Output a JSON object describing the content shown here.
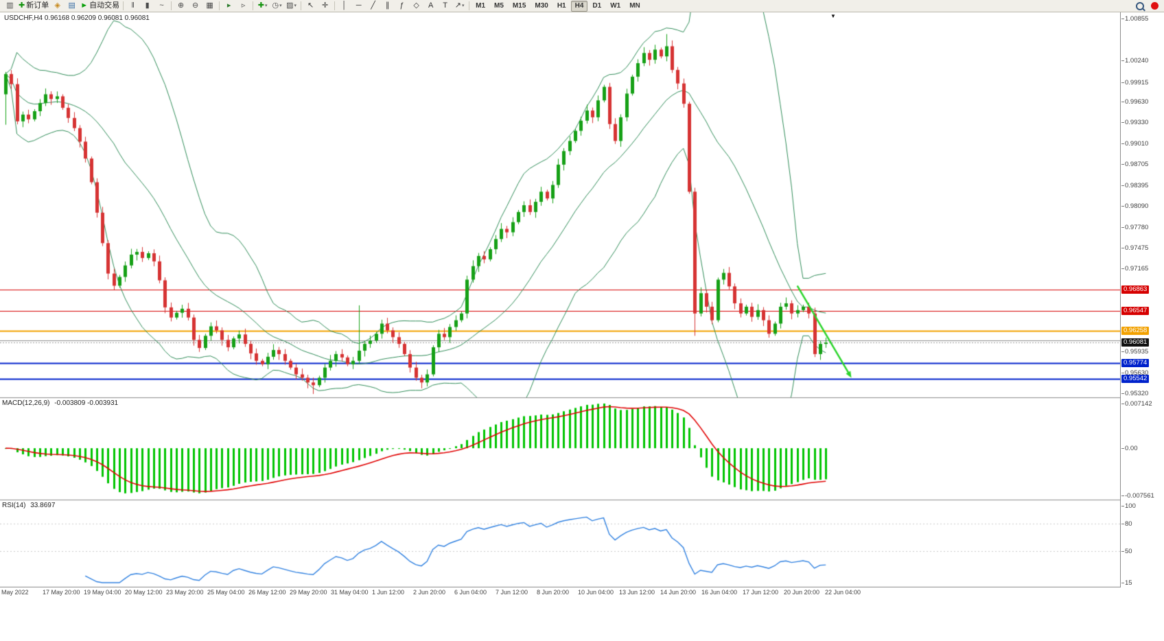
{
  "toolbar": {
    "items": [
      {
        "name": "new-chart-button",
        "glyph": "▥",
        "color": "#4a4a4a"
      },
      {
        "name": "new-order-button",
        "glyph": "✚",
        "color": "#14930e",
        "label": "新订单"
      },
      {
        "name": "metaeditor-button",
        "glyph": "◈",
        "color": "#c78a1e"
      },
      {
        "name": "market-watch-button",
        "glyph": "▤",
        "color": "#3a6ea5"
      },
      {
        "name": "autotrading-button",
        "glyph": "►",
        "color": "#0ca00c",
        "label": "自动交易"
      },
      {
        "sep": true
      },
      {
        "name": "bar-chart-button",
        "glyph": "‖",
        "color": "#4a4a4a"
      },
      {
        "name": "candlestick-chart-button",
        "glyph": "▮",
        "color": "#4a4a4a"
      },
      {
        "name": "line-chart-button",
        "glyph": "~",
        "color": "#4a4a4a"
      },
      {
        "sep": true
      },
      {
        "name": "zoom-in-button",
        "glyph": "⊕",
        "color": "#4a4a4a"
      },
      {
        "name": "zoom-out-button",
        "glyph": "⊖",
        "color": "#4a4a4a"
      },
      {
        "name": "tile-windows-button",
        "glyph": "▦",
        "color": "#4a4a4a"
      },
      {
        "sep": true
      },
      {
        "name": "auto-scroll-button",
        "glyph": "▸",
        "color": "#2f7d2f"
      },
      {
        "name": "chart-shift-button",
        "glyph": "▹",
        "color": "#4a4a4a"
      },
      {
        "sep": true
      },
      {
        "name": "indicators-button",
        "glyph": "✚",
        "color": "#14930e",
        "dd": true
      },
      {
        "name": "periods-button",
        "glyph": "◷",
        "color": "#4a4a4a",
        "dd": true
      },
      {
        "name": "templates-button",
        "glyph": "▨",
        "color": "#4a4a4a",
        "dd": true
      },
      {
        "sep": true
      },
      {
        "name": "cursor-button",
        "glyph": "↖",
        "color": "#333333"
      },
      {
        "name": "crosshair-button",
        "glyph": "✛",
        "color": "#333333"
      },
      {
        "sep": true
      },
      {
        "name": "vertical-line-button",
        "glyph": "│",
        "color": "#333333"
      },
      {
        "name": "horizontal-line-button",
        "glyph": "─",
        "color": "#333333"
      },
      {
        "name": "trendline-button",
        "glyph": "╱",
        "color": "#333333"
      },
      {
        "name": "channel-button",
        "glyph": "∥",
        "color": "#333333"
      },
      {
        "name": "fibonacci-button",
        "glyph": "ƒ",
        "color": "#333333"
      },
      {
        "name": "shapes-button",
        "glyph": "◇",
        "color": "#333333"
      },
      {
        "name": "text-button",
        "glyph": "A",
        "color": "#333333"
      },
      {
        "name": "text-label-button",
        "glyph": "T",
        "color": "#333333"
      },
      {
        "name": "arrows-button",
        "glyph": "↗",
        "color": "#333333",
        "dd": true
      }
    ],
    "timeframes": [
      "M1",
      "M5",
      "M15",
      "M30",
      "H1",
      "H4",
      "D1",
      "W1",
      "MN"
    ],
    "active_timeframe": "H4"
  },
  "chart": {
    "symbol_ohlc": "USDCHF,H4  0.96168 0.96209 0.96081 0.96081",
    "price_axis_labels": [
      {
        "t": "1.00855",
        "p": 1.00855
      },
      {
        "t": "1.00240",
        "p": 1.0024
      },
      {
        "t": "0.99915",
        "p": 0.99915
      },
      {
        "t": "0.99630",
        "p": 0.9963
      },
      {
        "t": "0.99330",
        "p": 0.9933
      },
      {
        "t": "0.99010",
        "p": 0.9901
      },
      {
        "t": "0.98705",
        "p": 0.98705
      },
      {
        "t": "0.98395",
        "p": 0.98395
      },
      {
        "t": "0.98090",
        "p": 0.9809
      },
      {
        "t": "0.97780",
        "p": 0.9778
      },
      {
        "t": "0.97475",
        "p": 0.97475
      },
      {
        "t": "0.97165",
        "p": 0.97165
      },
      {
        "t": "0.95935",
        "p": 0.95935
      },
      {
        "t": "0.95630",
        "p": 0.9563
      },
      {
        "t": "0.95320",
        "p": 0.9532
      }
    ],
    "price_badges": [
      {
        "t": "0.96863",
        "p": 0.96863,
        "bg": "#d60000"
      },
      {
        "t": "0.96547",
        "p": 0.96547,
        "bg": "#d60000"
      },
      {
        "t": "0.96258",
        "p": 0.96258,
        "bg": "#f2a100"
      },
      {
        "t": "0.96081",
        "p": 0.96081,
        "bg": "#111111"
      },
      {
        "t": "0.95774",
        "p": 0.95774,
        "bg": "#0022cc"
      },
      {
        "t": "0.95542",
        "p": 0.95542,
        "bg": "#0022cc"
      }
    ],
    "time_axis": [
      "May 2022",
      "17 May 20:00",
      "19 May 04:00",
      "20 May 12:00",
      "23 May 20:00",
      "25 May 04:00",
      "26 May 12:00",
      "29 May 20:00",
      "31 May 04:00",
      "1 Jun 12:00",
      "2 Jun 20:00",
      "6 Jun 04:00",
      "7 Jun 12:00",
      "8 Jun 20:00",
      "10 Jun 04:00",
      "13 Jun 12:00",
      "14 Jun 20:00",
      "16 Jun 04:00",
      "17 Jun 12:00",
      "20 Jun 20:00",
      "22 Jun 04:00"
    ]
  },
  "macd": {
    "label": "MACD(12,26,9)",
    "values": "-0.003809 -0.003931",
    "axis": [
      {
        "t": "0.007142",
        "v": 0.007142
      },
      {
        "t": "0.00",
        "v": 0
      },
      {
        "t": "-0.007561",
        "v": -0.007561
      }
    ],
    "range": [
      -0.007561,
      0.007142
    ]
  },
  "rsi": {
    "label": "RSI(14)",
    "value": "33.8697",
    "axis": [
      {
        "t": "100",
        "v": 100
      },
      {
        "t": "80",
        "v": 80
      },
      {
        "t": "50",
        "v": 50
      },
      {
        "t": "15",
        "v": 15
      }
    ],
    "range": [
      15,
      100
    ],
    "levels": [
      80,
      50
    ]
  },
  "colors": {
    "up": "#16a016",
    "down": "#d63333",
    "bollinger": "#2e8b57",
    "macd_hist": "#00c400",
    "macd_signal": "#e00000",
    "rsi_line": "#2f80e0",
    "arrow": "#2bd42b",
    "level_dots": "#c8c8c8"
  },
  "chart_data": {
    "type": "candlestick",
    "symbol": "USDCHF",
    "timeframe": "H4",
    "ohlc_current": {
      "open": 0.96168,
      "high": 0.96209,
      "low": 0.96081,
      "close": 0.96081
    },
    "y_range": [
      0.9528,
      1.0088
    ],
    "closes": [
      1.0005,
      0.999,
      0.9935,
      0.9945,
      0.9938,
      0.995,
      0.9962,
      0.9975,
      0.9968,
      0.9972,
      0.9955,
      0.994,
      0.9925,
      0.9905,
      0.988,
      0.9845,
      0.98,
      0.9755,
      0.971,
      0.9692,
      0.9705,
      0.9722,
      0.9738,
      0.9742,
      0.9733,
      0.974,
      0.9728,
      0.97,
      0.966,
      0.9645,
      0.9652,
      0.9658,
      0.9645,
      0.9612,
      0.96,
      0.9618,
      0.9632,
      0.9626,
      0.9612,
      0.9601,
      0.9614,
      0.962,
      0.9606,
      0.9592,
      0.9581,
      0.9576,
      0.9587,
      0.9597,
      0.9591,
      0.9581,
      0.9571,
      0.9561,
      0.9556,
      0.9549,
      0.9545,
      0.9556,
      0.9571,
      0.9581,
      0.9591,
      0.9586,
      0.9576,
      0.9581,
      0.9596,
      0.9606,
      0.9611,
      0.9621,
      0.9636,
      0.9626,
      0.9616,
      0.9606,
      0.9591,
      0.9571,
      0.9556,
      0.9549,
      0.9561,
      0.9601,
      0.9621,
      0.9616,
      0.9631,
      0.9641,
      0.9651,
      0.9701,
      0.9721,
      0.9736,
      0.9731,
      0.9746,
      0.9761,
      0.9776,
      0.9771,
      0.9786,
      0.9801,
      0.9811,
      0.9801,
      0.9816,
      0.9831,
      0.9821,
      0.9841,
      0.9871,
      0.9891,
      0.9906,
      0.9921,
      0.9936,
      0.9951,
      0.9941,
      0.9966,
      0.9986,
      0.9931,
      0.9906,
      0.9941,
      0.9976,
      1.0001,
      1.0021,
      1.0036,
      1.0026,
      1.0041,
      1.0031,
      1.0046,
      1.0011,
      0.9991,
      0.9961,
      0.9831,
      0.9651,
      0.9681,
      0.9661,
      0.9641,
      0.9701,
      0.9711,
      0.9691,
      0.9666,
      0.9651,
      0.9661,
      0.9646,
      0.9656,
      0.9641,
      0.9621,
      0.9636,
      0.9661,
      0.9666,
      0.9651,
      0.9656,
      0.9661,
      0.9651,
      0.9591,
      0.9606,
      0.9608
    ],
    "wick_overrides": {
      "0": {
        "l": 0.993
      },
      "54": {
        "l": 0.9532
      },
      "62": {
        "h": 0.9663
      },
      "116": {
        "h": 1.0064
      },
      "121": {
        "l": 0.9618
      }
    },
    "hlines": [
      {
        "price": 0.96863,
        "color": "#d60000",
        "w": 1
      },
      {
        "price": 0.96547,
        "color": "#d60000",
        "w": 1
      },
      {
        "price": 0.96258,
        "color": "#f2a100",
        "w": 2
      },
      {
        "price": 0.96115,
        "color": "#8a8a8a",
        "w": 1
      },
      {
        "price": 0.96081,
        "color": "#9a9a9a",
        "w": 1,
        "dash": true
      },
      {
        "price": 0.95774,
        "color": "#0022cc",
        "w": 2
      },
      {
        "price": 0.95542,
        "color": "#0022cc",
        "w": 2
      }
    ],
    "trend_arrow": {
      "from_bar": 139,
      "from_price": 0.9692,
      "to_bar": 148.5,
      "to_price": 0.9556
    },
    "indicators": [
      {
        "name": "Bollinger Bands",
        "period": 20,
        "deviation": 2
      },
      {
        "name": "MACD",
        "fast": 12,
        "slow": 26,
        "signal": 9,
        "values": [
          -0.003809,
          -0.003931
        ]
      },
      {
        "name": "RSI",
        "period": 14,
        "value": 33.8697
      }
    ]
  }
}
